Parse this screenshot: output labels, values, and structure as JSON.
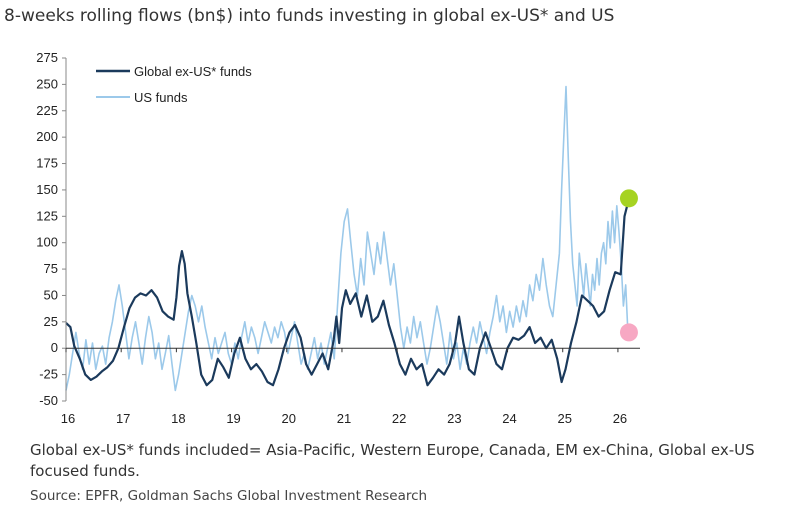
{
  "chart_data": {
    "type": "line",
    "title": "8-weeks rolling flows (bn$) into funds investing in global ex-US* and US",
    "xlabel": "",
    "ylabel": "",
    "xlim": [
      16,
      26.4
    ],
    "ylim": [
      -50,
      275
    ],
    "yticks": [
      -50,
      -25,
      0,
      25,
      50,
      75,
      100,
      125,
      150,
      175,
      200,
      225,
      250,
      275
    ],
    "xticks": [
      16,
      17,
      18,
      19,
      20,
      21,
      22,
      23,
      24,
      25,
      26
    ],
    "legend_position": "top-left",
    "series": [
      {
        "name": "Global ex-US* funds",
        "color": "#1b3a5c",
        "points": [
          [
            16.0,
            24
          ],
          [
            16.08,
            20
          ],
          [
            16.15,
            2
          ],
          [
            16.25,
            -10
          ],
          [
            16.35,
            -25
          ],
          [
            16.45,
            -30
          ],
          [
            16.55,
            -27
          ],
          [
            16.65,
            -22
          ],
          [
            16.75,
            -18
          ],
          [
            16.85,
            -12
          ],
          [
            16.95,
            0
          ],
          [
            17.05,
            20
          ],
          [
            17.15,
            38
          ],
          [
            17.25,
            48
          ],
          [
            17.35,
            52
          ],
          [
            17.45,
            50
          ],
          [
            17.55,
            55
          ],
          [
            17.65,
            48
          ],
          [
            17.75,
            35
          ],
          [
            17.85,
            30
          ],
          [
            17.95,
            27
          ],
          [
            18.0,
            48
          ],
          [
            18.05,
            78
          ],
          [
            18.1,
            92
          ],
          [
            18.15,
            80
          ],
          [
            18.2,
            52
          ],
          [
            18.28,
            30
          ],
          [
            18.36,
            5
          ],
          [
            18.45,
            -25
          ],
          [
            18.55,
            -35
          ],
          [
            18.65,
            -30
          ],
          [
            18.75,
            -10
          ],
          [
            18.85,
            -18
          ],
          [
            18.95,
            -28
          ],
          [
            19.05,
            -5
          ],
          [
            19.15,
            10
          ],
          [
            19.25,
            -10
          ],
          [
            19.35,
            -20
          ],
          [
            19.45,
            -15
          ],
          [
            19.55,
            -22
          ],
          [
            19.65,
            -32
          ],
          [
            19.75,
            -35
          ],
          [
            19.85,
            -20
          ],
          [
            19.95,
            0
          ],
          [
            20.05,
            15
          ],
          [
            20.15,
            22
          ],
          [
            20.25,
            10
          ],
          [
            20.35,
            -15
          ],
          [
            20.45,
            -25
          ],
          [
            20.55,
            -15
          ],
          [
            20.65,
            -5
          ],
          [
            20.75,
            -20
          ],
          [
            20.85,
            8
          ],
          [
            20.9,
            30
          ],
          [
            20.95,
            5
          ],
          [
            21.0,
            38
          ],
          [
            21.07,
            55
          ],
          [
            21.15,
            42
          ],
          [
            21.25,
            52
          ],
          [
            21.35,
            30
          ],
          [
            21.45,
            50
          ],
          [
            21.55,
            25
          ],
          [
            21.65,
            30
          ],
          [
            21.75,
            45
          ],
          [
            21.85,
            22
          ],
          [
            21.95,
            5
          ],
          [
            22.05,
            -15
          ],
          [
            22.15,
            -25
          ],
          [
            22.25,
            -10
          ],
          [
            22.35,
            -20
          ],
          [
            22.45,
            -15
          ],
          [
            22.55,
            -35
          ],
          [
            22.65,
            -28
          ],
          [
            22.75,
            -20
          ],
          [
            22.85,
            -25
          ],
          [
            22.95,
            -15
          ],
          [
            23.05,
            5
          ],
          [
            23.12,
            30
          ],
          [
            23.2,
            5
          ],
          [
            23.3,
            -20
          ],
          [
            23.4,
            -25
          ],
          [
            23.5,
            0
          ],
          [
            23.6,
            15
          ],
          [
            23.7,
            0
          ],
          [
            23.8,
            -15
          ],
          [
            23.9,
            -20
          ],
          [
            24.0,
            0
          ],
          [
            24.1,
            10
          ],
          [
            24.2,
            8
          ],
          [
            24.3,
            12
          ],
          [
            24.4,
            20
          ],
          [
            24.5,
            5
          ],
          [
            24.6,
            10
          ],
          [
            24.7,
            0
          ],
          [
            24.8,
            8
          ],
          [
            24.9,
            -10
          ],
          [
            24.98,
            -32
          ],
          [
            25.05,
            -20
          ],
          [
            25.15,
            5
          ],
          [
            25.25,
            25
          ],
          [
            25.35,
            50
          ],
          [
            25.45,
            45
          ],
          [
            25.55,
            40
          ],
          [
            25.65,
            30
          ],
          [
            25.75,
            35
          ],
          [
            25.85,
            55
          ],
          [
            25.95,
            72
          ],
          [
            26.05,
            70
          ],
          [
            26.12,
            125
          ],
          [
            26.2,
            142
          ]
        ]
      },
      {
        "name": "US funds",
        "color": "#9cc9ea",
        "points": [
          [
            16.0,
            -40
          ],
          [
            16.06,
            -25
          ],
          [
            16.12,
            -5
          ],
          [
            16.18,
            15
          ],
          [
            16.24,
            -5
          ],
          [
            16.3,
            -20
          ],
          [
            16.36,
            8
          ],
          [
            16.42,
            -15
          ],
          [
            16.48,
            5
          ],
          [
            16.54,
            -20
          ],
          [
            16.6,
            -5
          ],
          [
            16.66,
            2
          ],
          [
            16.72,
            -15
          ],
          [
            16.78,
            10
          ],
          [
            16.84,
            25
          ],
          [
            16.9,
            45
          ],
          [
            16.96,
            60
          ],
          [
            17.02,
            40
          ],
          [
            17.08,
            15
          ],
          [
            17.14,
            -10
          ],
          [
            17.2,
            10
          ],
          [
            17.26,
            25
          ],
          [
            17.32,
            5
          ],
          [
            17.38,
            -15
          ],
          [
            17.44,
            10
          ],
          [
            17.5,
            30
          ],
          [
            17.56,
            15
          ],
          [
            17.62,
            -10
          ],
          [
            17.68,
            5
          ],
          [
            17.74,
            -20
          ],
          [
            17.8,
            -5
          ],
          [
            17.86,
            12
          ],
          [
            17.92,
            -15
          ],
          [
            17.98,
            -40
          ],
          [
            18.04,
            -25
          ],
          [
            18.1,
            -5
          ],
          [
            18.16,
            15
          ],
          [
            18.22,
            35
          ],
          [
            18.28,
            50
          ],
          [
            18.34,
            40
          ],
          [
            18.4,
            25
          ],
          [
            18.46,
            40
          ],
          [
            18.52,
            20
          ],
          [
            18.58,
            5
          ],
          [
            18.64,
            -10
          ],
          [
            18.7,
            10
          ],
          [
            18.76,
            -5
          ],
          [
            18.82,
            5
          ],
          [
            18.88,
            15
          ],
          [
            18.94,
            -5
          ],
          [
            19.0,
            -15
          ],
          [
            19.06,
            5
          ],
          [
            19.12,
            -10
          ],
          [
            19.18,
            10
          ],
          [
            19.24,
            25
          ],
          [
            19.3,
            5
          ],
          [
            19.36,
            20
          ],
          [
            19.42,
            10
          ],
          [
            19.48,
            -5
          ],
          [
            19.54,
            10
          ],
          [
            19.6,
            25
          ],
          [
            19.66,
            15
          ],
          [
            19.72,
            5
          ],
          [
            19.78,
            20
          ],
          [
            19.84,
            10
          ],
          [
            19.9,
            25
          ],
          [
            19.96,
            15
          ],
          [
            20.02,
            -5
          ],
          [
            20.08,
            10
          ],
          [
            20.14,
            25
          ],
          [
            20.2,
            5
          ],
          [
            20.26,
            -15
          ],
          [
            20.32,
            -5
          ],
          [
            20.38,
            -20
          ],
          [
            20.44,
            -5
          ],
          [
            20.5,
            10
          ],
          [
            20.56,
            -10
          ],
          [
            20.62,
            5
          ],
          [
            20.68,
            -15
          ],
          [
            20.74,
            0
          ],
          [
            20.8,
            15
          ],
          [
            20.86,
            -10
          ],
          [
            20.92,
            40
          ],
          [
            20.98,
            90
          ],
          [
            21.04,
            120
          ],
          [
            21.1,
            132
          ],
          [
            21.16,
            100
          ],
          [
            21.22,
            70
          ],
          [
            21.28,
            50
          ],
          [
            21.34,
            85
          ],
          [
            21.4,
            60
          ],
          [
            21.46,
            110
          ],
          [
            21.52,
            90
          ],
          [
            21.58,
            70
          ],
          [
            21.64,
            100
          ],
          [
            21.7,
            80
          ],
          [
            21.76,
            110
          ],
          [
            21.82,
            85
          ],
          [
            21.88,
            60
          ],
          [
            21.94,
            80
          ],
          [
            22.0,
            50
          ],
          [
            22.06,
            20
          ],
          [
            22.12,
            0
          ],
          [
            22.18,
            20
          ],
          [
            22.24,
            5
          ],
          [
            22.3,
            30
          ],
          [
            22.36,
            10
          ],
          [
            22.42,
            25
          ],
          [
            22.48,
            5
          ],
          [
            22.54,
            -15
          ],
          [
            22.6,
            0
          ],
          [
            22.66,
            20
          ],
          [
            22.72,
            40
          ],
          [
            22.78,
            25
          ],
          [
            22.84,
            5
          ],
          [
            22.9,
            -15
          ],
          [
            22.96,
            15
          ],
          [
            23.02,
            -10
          ],
          [
            23.08,
            5
          ],
          [
            23.14,
            -20
          ],
          [
            23.2,
            0
          ],
          [
            23.26,
            -15
          ],
          [
            23.32,
            5
          ],
          [
            23.38,
            20
          ],
          [
            23.44,
            5
          ],
          [
            23.5,
            25
          ],
          [
            23.56,
            10
          ],
          [
            23.62,
            -5
          ],
          [
            23.68,
            15
          ],
          [
            23.74,
            30
          ],
          [
            23.8,
            50
          ],
          [
            23.86,
            25
          ],
          [
            23.92,
            40
          ],
          [
            23.98,
            15
          ],
          [
            24.04,
            35
          ],
          [
            24.1,
            20
          ],
          [
            24.16,
            40
          ],
          [
            24.22,
            25
          ],
          [
            24.28,
            45
          ],
          [
            24.34,
            30
          ],
          [
            24.4,
            60
          ],
          [
            24.46,
            45
          ],
          [
            24.52,
            70
          ],
          [
            24.58,
            55
          ],
          [
            24.64,
            85
          ],
          [
            24.7,
            60
          ],
          [
            24.76,
            40
          ],
          [
            24.82,
            30
          ],
          [
            24.88,
            60
          ],
          [
            24.94,
            90
          ],
          [
            24.98,
            150
          ],
          [
            25.02,
            200
          ],
          [
            25.06,
            248
          ],
          [
            25.1,
            180
          ],
          [
            25.14,
            120
          ],
          [
            25.18,
            80
          ],
          [
            25.22,
            60
          ],
          [
            25.26,
            40
          ],
          [
            25.3,
            90
          ],
          [
            25.34,
            70
          ],
          [
            25.38,
            50
          ],
          [
            25.42,
            80
          ],
          [
            25.46,
            60
          ],
          [
            25.5,
            40
          ],
          [
            25.54,
            70
          ],
          [
            25.58,
            55
          ],
          [
            25.62,
            85
          ],
          [
            25.66,
            60
          ],
          [
            25.7,
            90
          ],
          [
            25.74,
            100
          ],
          [
            25.78,
            80
          ],
          [
            25.82,
            120
          ],
          [
            25.86,
            95
          ],
          [
            25.9,
            130
          ],
          [
            25.94,
            100
          ],
          [
            25.98,
            135
          ],
          [
            26.02,
            110
          ],
          [
            26.06,
            80
          ],
          [
            26.1,
            40
          ],
          [
            26.14,
            60
          ],
          [
            26.18,
            15
          ]
        ]
      }
    ],
    "highlights": [
      {
        "series": "Global ex-US* funds",
        "x": 26.2,
        "y": 142,
        "color": "#a6d322"
      },
      {
        "series": "US funds",
        "x": 26.2,
        "y": 15,
        "color": "#f7a8c3"
      }
    ]
  },
  "footnote": "Global ex-US* funds included= Asia-Pacific, Western Europe, Canada, EM ex-China, Global ex-US focused funds.",
  "source": "Source: EPFR, Goldman Sachs Global Investment Research"
}
